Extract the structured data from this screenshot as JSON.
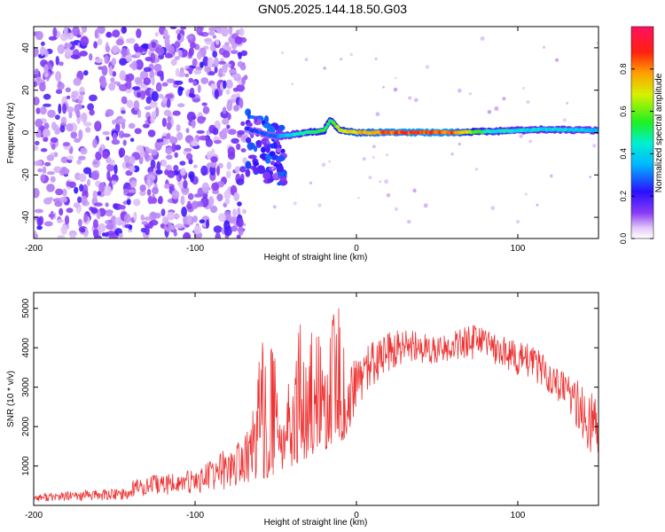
{
  "title": "GN05.2025.144.18.50.G03",
  "chart_data": [
    {
      "type": "heatmap",
      "title": "",
      "xlabel": "Height of straight line (km)",
      "ylabel": "Frequency (Hz)",
      "xlim": [
        -200,
        150
      ],
      "ylim": [
        -50,
        50
      ],
      "xticks": [
        -200,
        -100,
        0,
        100
      ],
      "xtick_labels": [
        "-200",
        "-100",
        "0",
        "100"
      ],
      "yticks": [
        -40,
        -20,
        0,
        20,
        40
      ],
      "ytick_labels": [
        "-40",
        "-20",
        "0",
        "20",
        "40"
      ],
      "colorbar": {
        "label": "Normalized spectral amplitude",
        "range": [
          0,
          1
        ],
        "ticks": [
          0.0,
          0.2,
          0.4,
          0.6,
          0.8
        ],
        "tick_labels": [
          "0.0",
          "0.2",
          "0.4",
          "0.6",
          "0.8"
        ],
        "colormap": "rainbow"
      },
      "description_regions": [
        {
          "x_range": [
            -200,
            -68
          ],
          "freq_range": [
            -50,
            50
          ],
          "amplitude": [
            0.0,
            0.12
          ]
        },
        {
          "x_range": [
            -68,
            -45
          ],
          "freq_range": [
            -20,
            10
          ],
          "amplitude": [
            0.1,
            0.3
          ]
        },
        {
          "x_range": [
            -45,
            60
          ],
          "freq_range": [
            -2,
            2
          ],
          "amplitude": [
            0.5,
            1.0
          ]
        },
        {
          "x_range": [
            60,
            150
          ],
          "freq_range": [
            -2,
            3
          ],
          "amplitude": [
            0.3,
            0.6
          ]
        }
      ],
      "ridge": {
        "x": [
          -68,
          -60,
          -50,
          -40,
          -30,
          -20,
          -16,
          -10,
          0,
          20,
          40,
          60,
          80,
          100,
          120,
          150
        ],
        "freq": [
          2,
          0,
          -2,
          -1,
          0,
          1,
          6,
          1,
          0,
          0,
          0,
          0,
          0.5,
          1,
          1.5,
          1
        ],
        "amplitude": [
          0.25,
          0.3,
          0.3,
          0.45,
          0.55,
          0.6,
          0.55,
          0.7,
          0.8,
          0.9,
          0.95,
          0.9,
          0.5,
          0.45,
          0.45,
          0.4
        ]
      }
    },
    {
      "type": "line",
      "title": "",
      "xlabel": "Height of straight line (km)",
      "ylabel": "SNR (10 * v/v)",
      "xlim": [
        -200,
        150
      ],
      "ylim": [
        0,
        5400
      ],
      "xticks": [
        -200,
        -100,
        0,
        100
      ],
      "xtick_labels": [
        "-200",
        "-100",
        "0",
        "100"
      ],
      "yticks": [
        1000,
        2000,
        3000,
        4000,
        5000
      ],
      "ytick_labels": [
        "1000",
        "2000",
        "3000",
        "4000",
        "5000"
      ],
      "series": [
        {
          "color": "#ee3333",
          "envelope": {
            "x": [
              -200,
              -180,
              -160,
              -140,
              -139,
              -120,
              -100,
              -90,
              -80,
              -70,
              -65,
              -55,
              -50,
              -45,
              -40,
              -35,
              -30,
              -25,
              -20,
              -15,
              -10,
              -7,
              -5,
              0,
              10,
              20,
              30,
              40,
              50,
              60,
              70,
              80,
              90,
              100,
              110,
              120,
              130,
              140,
              150
            ],
            "low": [
              100,
              100,
              120,
              150,
              200,
              250,
              300,
              350,
              400,
              500,
              600,
              700,
              800,
              900,
              1000,
              1100,
              1200,
              1300,
              1400,
              1500,
              1600,
              1700,
              1800,
              2500,
              3000,
              3300,
              3500,
              3600,
              3600,
              3700,
              3700,
              3700,
              3500,
              3300,
              3100,
              2800,
              2500,
              1500,
              1200
            ],
            "high": [
              300,
              350,
              400,
              450,
              700,
              800,
              900,
              1200,
              1500,
              1700,
              2200,
              5300,
              3600,
              4000,
              2500,
              4800,
              3800,
              5200,
              3800,
              4800,
              5300,
              3500,
              3600,
              3700,
              4200,
              4400,
              4500,
              4400,
              4300,
              4400,
              4600,
              4500,
              4300,
              4200,
              4100,
              3600,
              3400,
              3100,
              2800
            ]
          }
        }
      ]
    }
  ]
}
